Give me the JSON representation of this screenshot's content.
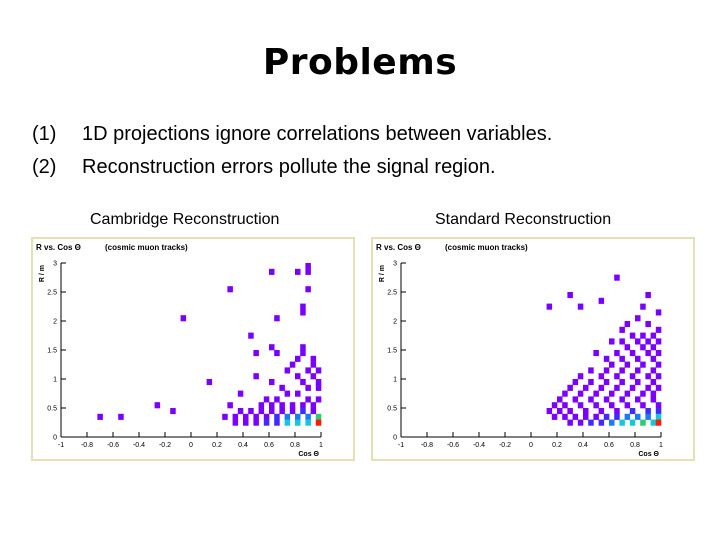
{
  "title": "Problems",
  "bullets": [
    {
      "num": "(1)",
      "text": "1D projections ignore correlations between variables."
    },
    {
      "num": "(2)",
      "text": "Reconstruction errors pollute the signal region."
    }
  ],
  "colors": {
    "frame": "#e6e1b4",
    "bins": [
      "#7a00ff",
      "#3f2bff",
      "#1a7aff",
      "#15c8d8",
      "#2ecc71",
      "#ff1a00"
    ]
  },
  "chart_data": [
    {
      "type": "heatmap",
      "caption": "Cambridge Reconstruction",
      "title": "R vs. Cos Θ",
      "subtitle": "(cosmic muon tracks)",
      "xlabel": "Cos Θ",
      "ylabel": "R / m",
      "xlim": [
        -1,
        1
      ],
      "ylim": [
        0,
        3
      ],
      "xticks": [
        -1,
        -0.8,
        -0.6,
        -0.4,
        -0.2,
        0,
        0.2,
        0.4,
        0.6,
        0.8,
        1
      ],
      "xtick_labels": [
        "-1",
        "-0.8",
        "-0.6",
        "-0.4",
        "-0.2",
        "0",
        "0.2",
        "0.4",
        "0.6",
        "0.8",
        "1"
      ],
      "yticks": [
        0,
        0.5,
        1,
        1.5,
        2,
        2.5,
        3
      ],
      "ytick_labels": [
        "0",
        "0.5",
        "1",
        "1.5",
        "2",
        "2.5",
        "3"
      ],
      "bin_width": [
        0.04,
        0.1
      ],
      "cells": [
        [
          0.9,
          2.95,
          0
        ],
        [
          0.82,
          2.85,
          0
        ],
        [
          0.9,
          2.85,
          0
        ],
        [
          0.62,
          2.85,
          0
        ],
        [
          0.3,
          2.55,
          0
        ],
        [
          0.9,
          2.55,
          0
        ],
        [
          -0.06,
          2.05,
          0
        ],
        [
          0.86,
          2.25,
          0
        ],
        [
          0.86,
          2.15,
          0
        ],
        [
          0.66,
          2.05,
          0
        ],
        [
          0.46,
          1.75,
          0
        ],
        [
          0.62,
          1.55,
          0
        ],
        [
          0.86,
          1.55,
          0
        ],
        [
          0.66,
          1.45,
          0
        ],
        [
          0.5,
          1.45,
          0
        ],
        [
          0.86,
          1.45,
          0
        ],
        [
          0.82,
          1.35,
          0
        ],
        [
          0.94,
          1.35,
          0
        ],
        [
          0.78,
          1.25,
          0
        ],
        [
          0.94,
          1.25,
          0
        ],
        [
          0.9,
          1.15,
          0
        ],
        [
          0.98,
          1.15,
          0
        ],
        [
          0.74,
          1.15,
          0
        ],
        [
          0.5,
          1.05,
          0
        ],
        [
          0.82,
          1.05,
          0
        ],
        [
          0.94,
          1.05,
          0
        ],
        [
          0.98,
          0.95,
          0
        ],
        [
          0.86,
          0.95,
          0
        ],
        [
          0.14,
          0.95,
          0
        ],
        [
          0.62,
          0.95,
          0
        ],
        [
          0.7,
          0.85,
          0
        ],
        [
          0.9,
          0.85,
          0
        ],
        [
          0.98,
          0.85,
          0
        ],
        [
          0.38,
          0.75,
          0
        ],
        [
          0.74,
          0.75,
          0
        ],
        [
          0.82,
          0.75,
          0
        ],
        [
          0.58,
          0.65,
          0
        ],
        [
          0.66,
          0.65,
          0
        ],
        [
          0.9,
          0.65,
          0
        ],
        [
          0.98,
          0.65,
          0
        ],
        [
          -0.26,
          0.55,
          0
        ],
        [
          0.3,
          0.55,
          0
        ],
        [
          0.54,
          0.55,
          0
        ],
        [
          0.62,
          0.55,
          0
        ],
        [
          0.7,
          0.55,
          0
        ],
        [
          0.78,
          0.55,
          0
        ],
        [
          0.86,
          0.55,
          0
        ],
        [
          0.94,
          0.55,
          0
        ],
        [
          -0.14,
          0.45,
          0
        ],
        [
          0.38,
          0.45,
          0
        ],
        [
          0.46,
          0.45,
          0
        ],
        [
          0.54,
          0.45,
          0
        ],
        [
          0.62,
          0.45,
          0
        ],
        [
          0.7,
          0.45,
          0
        ],
        [
          0.78,
          0.45,
          0
        ],
        [
          0.86,
          0.45,
          1
        ],
        [
          0.94,
          0.45,
          0
        ],
        [
          -0.7,
          0.35,
          0
        ],
        [
          -0.54,
          0.35,
          0
        ],
        [
          0.26,
          0.35,
          0
        ],
        [
          0.34,
          0.35,
          0
        ],
        [
          0.42,
          0.35,
          0
        ],
        [
          0.5,
          0.35,
          0
        ],
        [
          0.58,
          0.35,
          0
        ],
        [
          0.66,
          0.35,
          1
        ],
        [
          0.74,
          0.35,
          2
        ],
        [
          0.82,
          0.35,
          2
        ],
        [
          0.9,
          0.35,
          2
        ],
        [
          0.98,
          0.35,
          4
        ],
        [
          0.34,
          0.25,
          0
        ],
        [
          0.42,
          0.25,
          0
        ],
        [
          0.5,
          0.25,
          0
        ],
        [
          0.58,
          0.25,
          1
        ],
        [
          0.66,
          0.25,
          1
        ],
        [
          0.74,
          0.25,
          3
        ],
        [
          0.82,
          0.25,
          3
        ],
        [
          0.9,
          0.25,
          3
        ],
        [
          0.98,
          0.25,
          5
        ]
      ]
    },
    {
      "type": "heatmap",
      "caption": "Standard Reconstruction",
      "title": "R vs. Cos Θ",
      "subtitle": "(cosmic muon tracks)",
      "xlabel": "Cos Θ",
      "ylabel": "R / m",
      "xlim": [
        -1,
        1
      ],
      "ylim": [
        0,
        3
      ],
      "xticks": [
        -1,
        -0.8,
        -0.6,
        -0.4,
        -0.2,
        0,
        0.2,
        0.4,
        0.6,
        0.8,
        1
      ],
      "xtick_labels": [
        "-1",
        "-0.8",
        "-0.6",
        "-0.4",
        "-0.2",
        "0",
        "0.2",
        "0.4",
        "0.6",
        "0.8",
        "1"
      ],
      "yticks": [
        0,
        0.5,
        1,
        1.5,
        2,
        2.5,
        3
      ],
      "ytick_labels": [
        "0",
        "0.5",
        "1",
        "1.5",
        "2",
        "2.5",
        "3"
      ],
      "bin_width": [
        0.04,
        0.1
      ],
      "cells": [
        [
          0.66,
          2.75,
          0
        ],
        [
          0.3,
          2.45,
          0
        ],
        [
          0.54,
          2.35,
          0
        ],
        [
          0.9,
          2.45,
          0
        ],
        [
          0.14,
          2.25,
          0
        ],
        [
          0.38,
          2.25,
          0
        ],
        [
          0.86,
          2.25,
          0
        ],
        [
          0.98,
          2.15,
          0
        ],
        [
          0.82,
          2.05,
          0
        ],
        [
          0.74,
          1.95,
          0
        ],
        [
          0.9,
          1.95,
          0
        ],
        [
          0.98,
          1.85,
          0
        ],
        [
          0.7,
          1.85,
          0
        ],
        [
          0.78,
          1.75,
          0
        ],
        [
          0.86,
          1.75,
          0
        ],
        [
          0.94,
          1.75,
          0
        ],
        [
          0.62,
          1.65,
          0
        ],
        [
          0.7,
          1.65,
          0
        ],
        [
          0.82,
          1.65,
          0
        ],
        [
          0.9,
          1.65,
          0
        ],
        [
          0.98,
          1.65,
          0
        ],
        [
          0.74,
          1.55,
          0
        ],
        [
          0.86,
          1.55,
          0
        ],
        [
          0.94,
          1.55,
          0
        ],
        [
          0.5,
          1.45,
          0
        ],
        [
          0.66,
          1.45,
          0
        ],
        [
          0.78,
          1.45,
          0
        ],
        [
          0.9,
          1.45,
          0
        ],
        [
          0.98,
          1.45,
          0
        ],
        [
          0.58,
          1.35,
          0
        ],
        [
          0.7,
          1.35,
          0
        ],
        [
          0.82,
          1.35,
          0
        ],
        [
          0.94,
          1.35,
          0
        ],
        [
          0.62,
          1.25,
          0
        ],
        [
          0.74,
          1.25,
          0
        ],
        [
          0.86,
          1.25,
          0
        ],
        [
          0.98,
          1.25,
          0
        ],
        [
          0.46,
          1.15,
          0
        ],
        [
          0.58,
          1.15,
          0
        ],
        [
          0.7,
          1.15,
          0
        ],
        [
          0.82,
          1.15,
          0
        ],
        [
          0.94,
          1.15,
          0
        ],
        [
          0.38,
          1.05,
          0
        ],
        [
          0.54,
          1.05,
          0
        ],
        [
          0.66,
          1.05,
          0
        ],
        [
          0.78,
          1.05,
          0
        ],
        [
          0.9,
          1.05,
          0
        ],
        [
          0.98,
          1.05,
          0
        ],
        [
          0.34,
          0.95,
          0
        ],
        [
          0.46,
          0.95,
          0
        ],
        [
          0.58,
          0.95,
          0
        ],
        [
          0.7,
          0.95,
          0
        ],
        [
          0.82,
          0.95,
          0
        ],
        [
          0.94,
          0.95,
          0
        ],
        [
          0.3,
          0.85,
          0
        ],
        [
          0.42,
          0.85,
          0
        ],
        [
          0.54,
          0.85,
          0
        ],
        [
          0.66,
          0.85,
          0
        ],
        [
          0.78,
          0.85,
          0
        ],
        [
          0.9,
          0.85,
          0
        ],
        [
          0.98,
          0.85,
          0
        ],
        [
          0.26,
          0.75,
          0
        ],
        [
          0.38,
          0.75,
          0
        ],
        [
          0.5,
          0.75,
          0
        ],
        [
          0.62,
          0.75,
          0
        ],
        [
          0.74,
          0.75,
          0
        ],
        [
          0.86,
          0.75,
          0
        ],
        [
          0.94,
          0.75,
          0
        ],
        [
          0.22,
          0.65,
          0
        ],
        [
          0.34,
          0.65,
          0
        ],
        [
          0.46,
          0.65,
          0
        ],
        [
          0.58,
          0.65,
          0
        ],
        [
          0.7,
          0.65,
          0
        ],
        [
          0.82,
          0.65,
          0
        ],
        [
          0.94,
          0.65,
          0
        ],
        [
          0.18,
          0.55,
          0
        ],
        [
          0.26,
          0.55,
          0
        ],
        [
          0.38,
          0.55,
          0
        ],
        [
          0.5,
          0.55,
          0
        ],
        [
          0.62,
          0.55,
          0
        ],
        [
          0.74,
          0.55,
          0
        ],
        [
          0.86,
          0.55,
          0
        ],
        [
          0.98,
          0.55,
          0
        ],
        [
          0.14,
          0.45,
          0
        ],
        [
          0.22,
          0.45,
          0
        ],
        [
          0.3,
          0.45,
          0
        ],
        [
          0.42,
          0.45,
          0
        ],
        [
          0.54,
          0.45,
          0
        ],
        [
          0.66,
          0.45,
          0
        ],
        [
          0.78,
          0.45,
          1
        ],
        [
          0.9,
          0.45,
          1
        ],
        [
          0.98,
          0.45,
          1
        ],
        [
          0.18,
          0.35,
          0
        ],
        [
          0.26,
          0.35,
          0
        ],
        [
          0.34,
          0.35,
          0
        ],
        [
          0.42,
          0.35,
          0
        ],
        [
          0.5,
          0.35,
          0
        ],
        [
          0.58,
          0.35,
          1
        ],
        [
          0.66,
          0.35,
          1
        ],
        [
          0.74,
          0.35,
          2
        ],
        [
          0.82,
          0.35,
          2
        ],
        [
          0.9,
          0.35,
          2
        ],
        [
          0.98,
          0.35,
          3
        ],
        [
          0.3,
          0.25,
          0
        ],
        [
          0.38,
          0.25,
          0
        ],
        [
          0.46,
          0.25,
          1
        ],
        [
          0.54,
          0.25,
          1
        ],
        [
          0.62,
          0.25,
          2
        ],
        [
          0.7,
          0.25,
          3
        ],
        [
          0.78,
          0.25,
          3
        ],
        [
          0.86,
          0.25,
          4
        ],
        [
          0.94,
          0.25,
          3
        ],
        [
          0.98,
          0.25,
          5
        ]
      ]
    }
  ]
}
